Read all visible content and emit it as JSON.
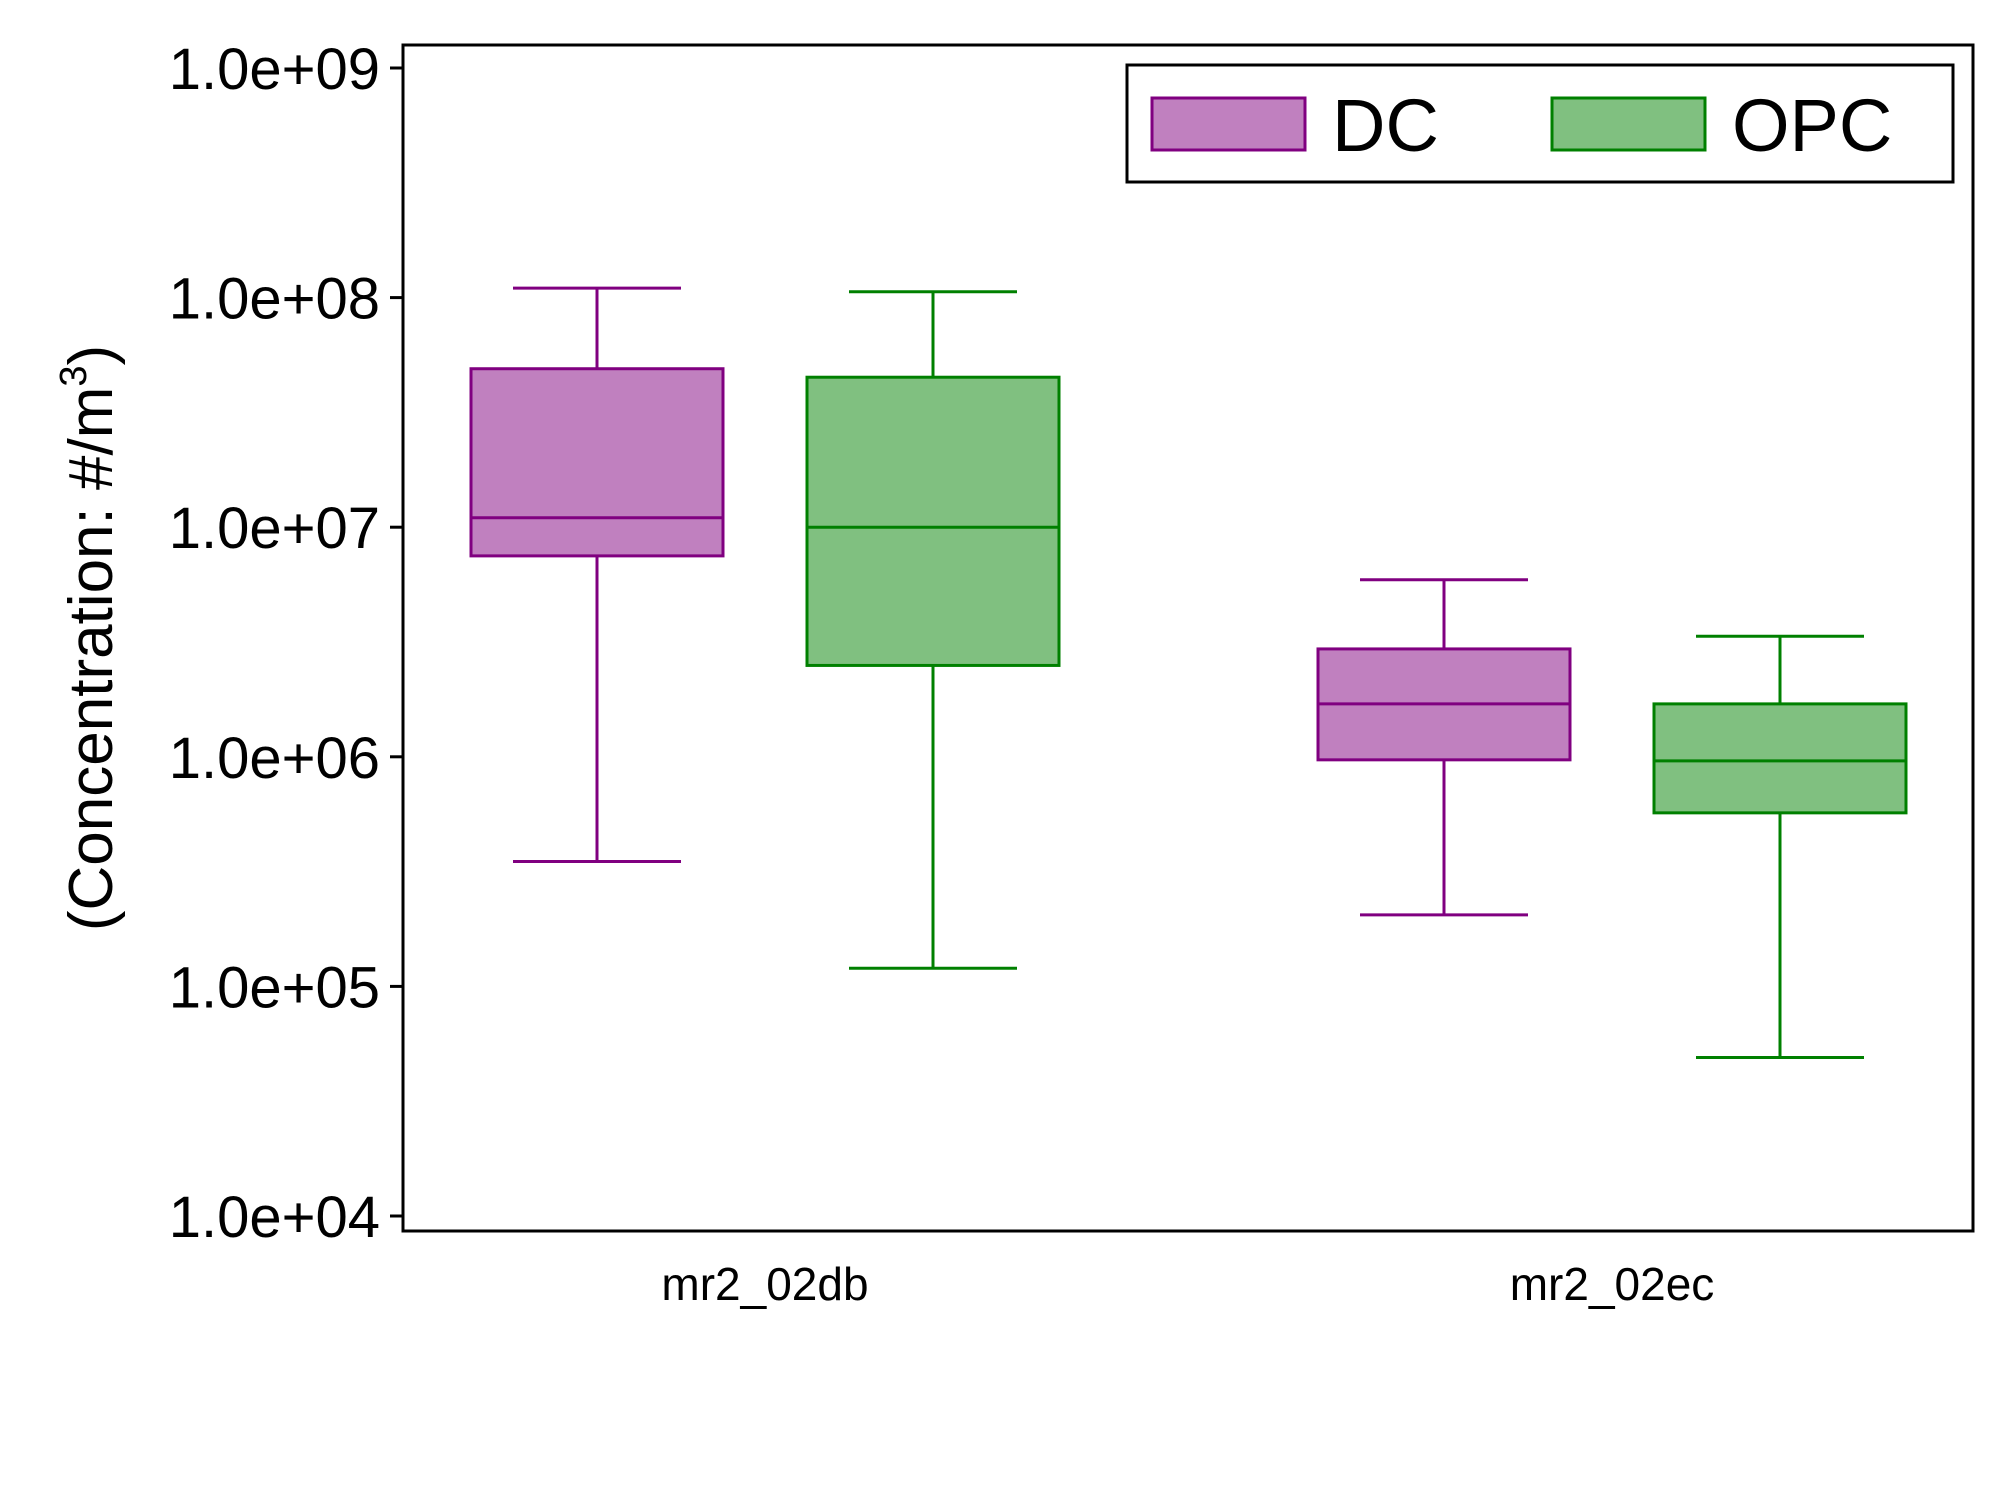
{
  "chart_data": {
    "type": "box",
    "ylabel_main": "(Concentration: #/m",
    "ylabel_sup": "3",
    "ylabel_close": ")",
    "yscale": "log",
    "ylim": [
      10000,
      1000000000
    ],
    "yticks": [
      10000,
      100000,
      1000000,
      10000000,
      100000000,
      1000000000
    ],
    "ytick_labels": [
      "1.0e+04",
      "1.0e+05",
      "1.0e+06",
      "1.0e+07",
      "1.0e+08",
      "1.0e+09"
    ],
    "categories": [
      "mr2_02db",
      "mr2_02ec"
    ],
    "legend_position": "top-right",
    "series": [
      {
        "name": "DC",
        "fill": "#c080bf",
        "stroke": "#800080",
        "boxes": [
          {
            "category": "mr2_02db",
            "whisker_low": 350000,
            "q1": 7500000,
            "median": 11000000,
            "q3": 49000000,
            "whisker_high": 110000000
          },
          {
            "category": "mr2_02ec",
            "whisker_low": 205000,
            "q1": 970000,
            "median": 1700000,
            "q3": 2950000,
            "whisker_high": 5900000
          }
        ]
      },
      {
        "name": "OPC",
        "fill": "#80c080",
        "stroke": "#008000",
        "boxes": [
          {
            "category": "mr2_02db",
            "whisker_low": 120000,
            "q1": 2500000,
            "median": 10000000,
            "q3": 45000000,
            "whisker_high": 106000000
          },
          {
            "category": "mr2_02ec",
            "whisker_low": 49000,
            "q1": 570000,
            "median": 960000,
            "q3": 1700000,
            "whisker_high": 3350000
          }
        ]
      }
    ]
  }
}
